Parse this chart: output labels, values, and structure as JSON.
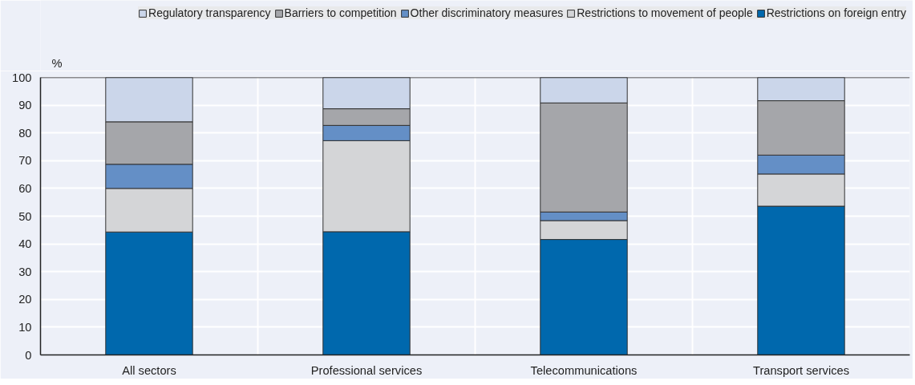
{
  "chart_data": {
    "type": "bar",
    "stacked": true,
    "ylabel": "%",
    "categories": [
      "All sectors",
      "Professional services",
      "Telecommunications",
      "Transport services"
    ],
    "series": [
      {
        "name": "Restrictions on foreign entry",
        "color": "#0068ad",
        "values": [
          44.3,
          44.4,
          41.6,
          53.6
        ]
      },
      {
        "name": "Restrictions to movement of people",
        "color": "#d4d5d7",
        "values": [
          15.7,
          32.8,
          6.8,
          11.6
        ]
      },
      {
        "name": "Other discriminatory measures",
        "color": "#648fc6",
        "values": [
          8.7,
          5.5,
          3.1,
          6.8
        ]
      },
      {
        "name": "Barriers to competition",
        "color": "#a5a6aa",
        "values": [
          15.3,
          6.0,
          39.3,
          19.6
        ]
      },
      {
        "name": "Regulatory transparency",
        "color": "#cbd6ea",
        "values": [
          16.0,
          11.3,
          9.2,
          8.4
        ]
      }
    ],
    "ylim": [
      0,
      100
    ],
    "yticks": [
      0,
      10,
      20,
      30,
      40,
      50,
      60,
      70,
      80,
      90,
      100
    ],
    "grid": true,
    "legend": "top"
  }
}
